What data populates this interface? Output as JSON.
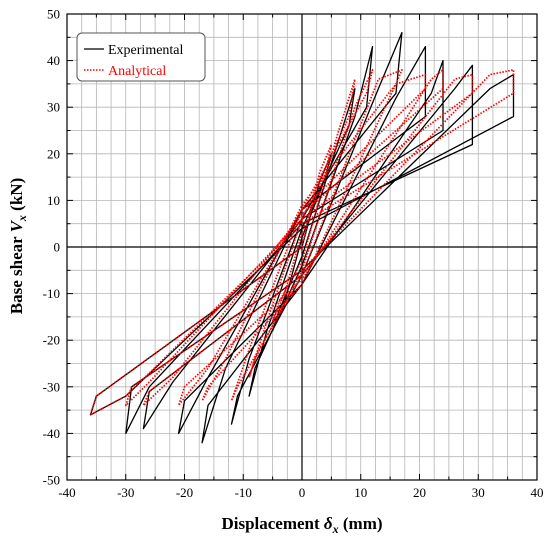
{
  "chart_data": {
    "type": "line",
    "xlabel": {
      "prefix": "Displacement ",
      "symbol": "δ",
      "subscript": "x",
      "suffix": " (mm)"
    },
    "ylabel": {
      "prefix": "Base shear ",
      "symbol": "V",
      "subscript": "x",
      "suffix": " (kN)"
    },
    "xlim": [
      -40,
      40
    ],
    "ylim": [
      -50,
      50
    ],
    "x_ticks": [
      -40,
      -30,
      -20,
      -10,
      0,
      10,
      20,
      30,
      40
    ],
    "y_ticks": [
      -50,
      -40,
      -30,
      -20,
      -10,
      0,
      10,
      20,
      30,
      40,
      50
    ],
    "x_tick_labels": [
      "-40",
      "-30",
      "-20",
      "-10",
      "0",
      "10",
      "20",
      "30",
      "40"
    ],
    "y_tick_labels": [
      "-50",
      "-40",
      "-30",
      "-20",
      "-10",
      "0",
      "10",
      "20",
      "30",
      "40",
      "50"
    ],
    "grid": true,
    "minor_grid_step": {
      "x": 2.5,
      "y": 5
    },
    "legend_position": "top-left",
    "series": [
      {
        "name": "Experimental",
        "color": "#000000",
        "style": "solid",
        "x": [
          0,
          3,
          5,
          4,
          0,
          -3,
          -5,
          -4,
          0,
          6,
          9,
          8,
          0,
          -6,
          -9,
          -8,
          0,
          9,
          12,
          11,
          0,
          -9,
          -12,
          -11,
          0,
          13,
          17,
          16,
          0,
          -13,
          -17,
          -16,
          0,
          16,
          21,
          21,
          0,
          -16,
          -21,
          -20,
          0,
          22,
          24,
          24,
          0,
          -22,
          -27,
          -26,
          0,
          26,
          29,
          29,
          0,
          -26,
          -30,
          -29,
          0,
          32,
          36,
          36,
          0,
          -30,
          -36,
          -35,
          0
        ],
        "y": [
          0,
          14,
          20,
          15,
          2,
          -12,
          -18,
          -14,
          -2,
          22,
          34,
          26,
          4,
          -18,
          -32,
          -26,
          -4,
          28,
          43,
          30,
          6,
          -24,
          -38,
          -32,
          -6,
          34,
          46,
          33,
          8,
          -26,
          -42,
          -34,
          -8,
          32,
          43,
          28,
          8,
          -28,
          -40,
          -33,
          -8,
          33,
          40,
          25,
          6,
          -29,
          -39,
          -31,
          -6,
          34,
          39,
          22,
          5,
          -30,
          -40,
          -30,
          -5,
          34,
          37,
          28,
          4,
          -32,
          -36,
          -32,
          0
        ]
      },
      {
        "name": "Analytical",
        "color": "#ff0000",
        "style": "dotted",
        "x": [
          0,
          3,
          5,
          4,
          0,
          -3,
          -5,
          -4,
          0,
          6,
          9,
          8,
          0,
          -6,
          -9,
          -8,
          0,
          9,
          12,
          11,
          0,
          -9,
          -12,
          -11,
          0,
          13,
          17,
          16,
          0,
          -13,
          -17,
          -16,
          0,
          16,
          21,
          21,
          0,
          -16,
          -21,
          -20,
          0,
          22,
          24,
          24,
          0,
          -22,
          -27,
          -26,
          0,
          26,
          29,
          29,
          0,
          -26,
          -30,
          -29,
          0,
          32,
          36,
          36,
          0,
          -30,
          -36,
          -35,
          0
        ],
        "y": [
          0,
          16,
          22,
          16,
          3,
          -10,
          -16,
          -12,
          -3,
          24,
          36,
          28,
          6,
          -16,
          -28,
          -24,
          -5,
          30,
          38,
          33,
          8,
          -22,
          -33,
          -30,
          -6,
          36,
          38,
          35,
          9,
          -24,
          -33,
          -30,
          -8,
          35,
          37,
          34,
          8,
          -26,
          -34,
          -30,
          -7,
          36,
          38,
          34,
          7,
          -28,
          -34,
          -31,
          -6,
          36,
          37,
          33,
          6,
          -29,
          -34,
          -30,
          -5,
          37,
          38,
          33,
          5,
          -32,
          -36,
          -32,
          0
        ]
      }
    ]
  }
}
